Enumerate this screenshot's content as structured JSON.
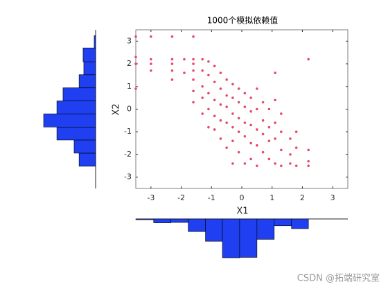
{
  "watermark": "CSDN @拓端研究室",
  "chart_data": [
    {
      "type": "scatter",
      "title": "1000个模拟依赖值",
      "x_label": "X1",
      "y_label": "X2",
      "color": "#e64c6a",
      "x": [
        -3.5,
        -3.5,
        -3.5,
        -3.5,
        -3,
        -3,
        -3,
        -3,
        -2.3,
        -2.3,
        -2.3,
        -2.3,
        -2.3,
        -1.6,
        -1.6,
        -1.6,
        -1.6,
        -1.6,
        -1.6,
        -1.6,
        -1.3,
        -1.3,
        -1.3,
        -1.3,
        -1.3,
        -1.1,
        -1.1,
        -1.1,
        -1.1,
        -1.1,
        -0.9,
        -0.9,
        -0.9,
        -0.9,
        -0.9,
        -0.7,
        -0.7,
        -0.7,
        -0.7,
        -0.7,
        -0.5,
        -0.5,
        -0.5,
        -0.5,
        -0.5,
        -0.3,
        -0.3,
        -0.3,
        -0.3,
        -0.3,
        -0.3,
        -0.1,
        -0.1,
        -0.1,
        -0.1,
        -0.1,
        0.1,
        0.1,
        0.1,
        0.1,
        0.1,
        0.3,
        0.3,
        0.3,
        0.3,
        0.3,
        0.5,
        0.5,
        0.5,
        0.5,
        0.5,
        0.7,
        0.7,
        0.7,
        0.7,
        0.9,
        0.9,
        0.9,
        0.9,
        1.1,
        1.1,
        1.1,
        1.1,
        1.1,
        1.3,
        1.3,
        1.3,
        1.3,
        1.6,
        1.6,
        1.6,
        1.8,
        1.8,
        1.8,
        2.2,
        2.2,
        2.2,
        2.2,
        -1.9,
        -1.9
      ],
      "y": [
        3.2,
        2.3,
        2.0,
        0.9,
        3.2,
        2.2,
        2.0,
        1.7,
        3.2,
        2.2,
        2.0,
        1.7,
        1.3,
        3.2,
        2.2,
        2.0,
        1.7,
        1.3,
        0.8,
        0.3,
        2.2,
        1.7,
        1.0,
        0.5,
        -0.2,
        2.1,
        1.5,
        0.7,
        0.0,
        -0.8,
        1.9,
        1.2,
        0.4,
        -0.3,
        -0.9,
        1.6,
        0.9,
        0.2,
        -0.5,
        -1.3,
        1.3,
        0.6,
        0.1,
        -0.6,
        -1.7,
        1.1,
        0.5,
        -0.2,
        -0.8,
        -1.4,
        -2.4,
        0.9,
        0.3,
        -0.4,
        -1.0,
        -1.9,
        0.7,
        0.1,
        -0.6,
        -1.2,
        -2.4,
        0.5,
        -0.1,
        -0.7,
        -1.5,
        -2.2,
        0.9,
        0.0,
        -0.9,
        -1.6,
        -2.5,
        0.3,
        -0.5,
        -1.1,
        -1.9,
        0.0,
        -0.8,
        -1.4,
        -2.2,
        1.6,
        0.4,
        -0.6,
        -1.3,
        -2.4,
        -0.2,
        -1.0,
        -1.8,
        -2.5,
        -1.3,
        -2.0,
        -2.4,
        -1.0,
        -1.7,
        -2.5,
        2.2,
        -1.8,
        -2.3,
        -2.5,
        1.6,
        2.2
      ],
      "xlim": [
        -3.5,
        3.5
      ],
      "ylim": [
        -3.5,
        3.5
      ],
      "xticks": [
        -3,
        -2,
        -1,
        0,
        1,
        2,
        3
      ],
      "yticks": [
        -3,
        -2,
        -1,
        0,
        1,
        2,
        3
      ]
    },
    {
      "type": "histogram",
      "orientation": "vertical",
      "color": "#1f3ff0",
      "bins": [
        -3.5,
        -2.91,
        -2.34,
        -1.77,
        -1.2,
        -0.64,
        -0.07,
        0.5,
        1.07,
        1.64,
        2.2
      ],
      "values": [
        4,
        20,
        18,
        65,
        115,
        200,
        198,
        105,
        35,
        50
      ],
      "ylim": [
        0,
        200
      ]
    },
    {
      "type": "histogram",
      "orientation": "horizontal",
      "color": "#1f3ff0",
      "bins": [
        -2.52,
        -1.94,
        -1.36,
        -0.79,
        -0.21,
        0.36,
        0.94,
        1.52,
        2.09,
        2.7,
        3.24
      ],
      "values": [
        70,
        91,
        164,
        220,
        164,
        138,
        70,
        50,
        53,
        6
      ],
      "xlim": [
        0,
        220
      ]
    }
  ]
}
